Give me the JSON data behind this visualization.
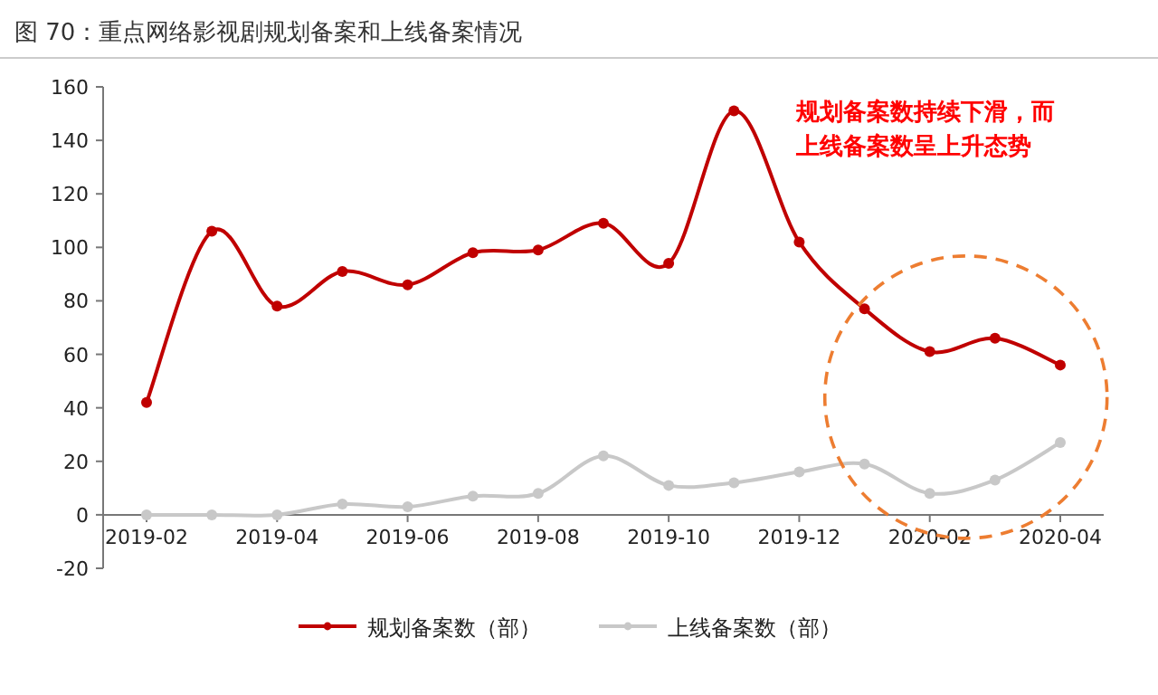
{
  "chart_data": {
    "type": "line",
    "title": "图 70：重点网络影视剧规划备案和上线备案情况",
    "categories": [
      "2019-02",
      null,
      "2019-04",
      null,
      "2019-06",
      null,
      "2019-08",
      null,
      "2019-10",
      null,
      "2019-12",
      null,
      "2020-02",
      null,
      "2020-04"
    ],
    "series": [
      {
        "name": "规划备案数（部）",
        "color": "#c00000",
        "values": [
          42,
          106,
          78,
          91,
          86,
          98,
          99,
          109,
          94,
          151,
          102,
          77,
          61,
          66,
          56
        ]
      },
      {
        "name": "上线备案数（部）",
        "color": "#c8c8c8",
        "values": [
          0,
          0,
          0,
          4,
          3,
          7,
          8,
          22,
          11,
          12,
          16,
          19,
          8,
          13,
          27
        ]
      }
    ],
    "ylim": [
      -20,
      160
    ],
    "yticks": [
      -20,
      0,
      20,
      40,
      60,
      80,
      100,
      120,
      140,
      160
    ],
    "annotations": [
      "规划备案数持续下滑，而上线备案数呈上升态势"
    ],
    "marker": "circle",
    "legend": "bottom",
    "grid": false
  }
}
